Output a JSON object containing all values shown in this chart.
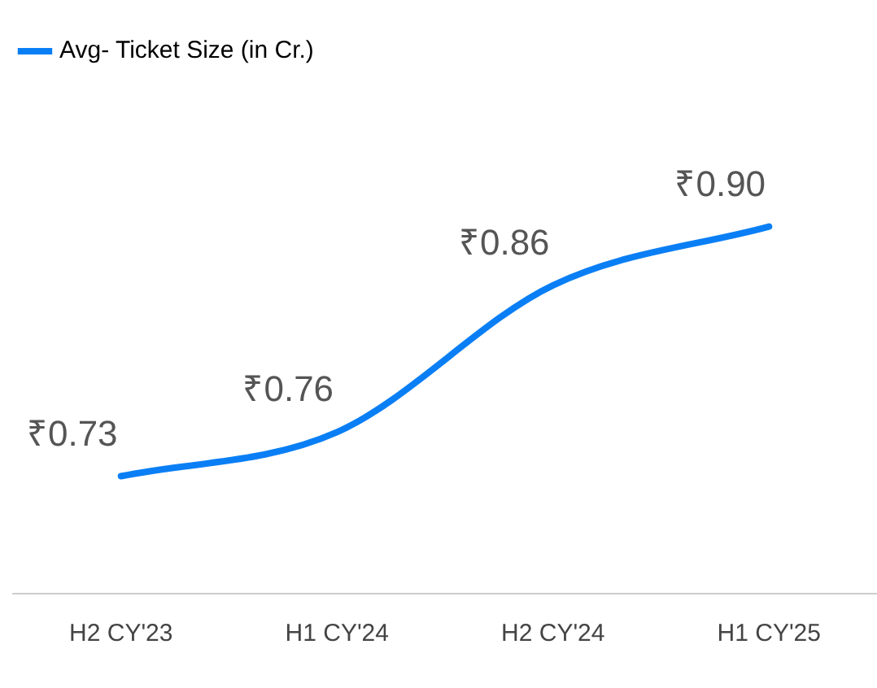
{
  "chart_data": {
    "type": "line",
    "categories": [
      "H2 CY'23",
      "H1 CY'24",
      "H2 CY'24",
      "H1 CY'25"
    ],
    "series": [
      {
        "name": "Avg- Ticket Size (in Cr.)",
        "color": "#0a7ff5",
        "values": [
          0.73,
          0.76,
          0.86,
          0.9
        ],
        "value_labels": [
          "₹0.73",
          "₹0.76",
          "₹0.86",
          "₹0.90"
        ]
      }
    ],
    "tick_labels": "x",
    "grid": false,
    "legend": "top left",
    "marker": "none"
  }
}
